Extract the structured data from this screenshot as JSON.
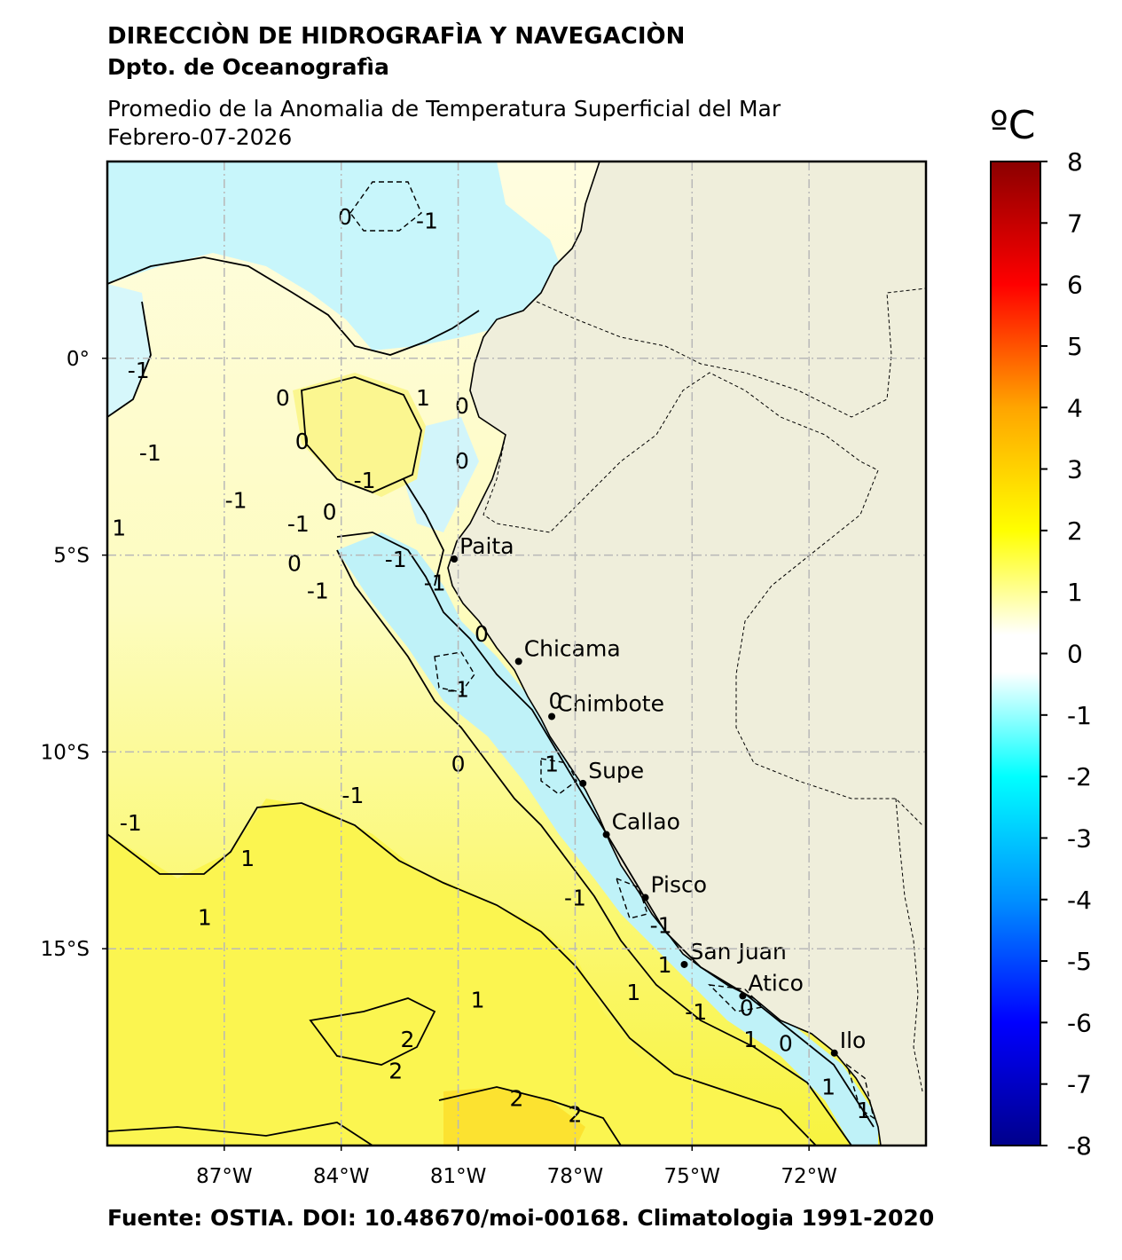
{
  "header": {
    "agency": "DIRECCIÒN DE HIDROGRAFÌA Y NAVEGACIÒN",
    "department": "Dpto. de Oceanografìa",
    "title": "Promedio de la Anomalia de Temperatura Superficial del Mar",
    "date": "Febrero-07-2026"
  },
  "footer": "Fuente: OSTIA. DOI: 10.48670/moi-00168. Climatologia 1991-2020",
  "map": {
    "extent": {
      "lon": [
        -90,
        -69
      ],
      "lat": [
        -20,
        5
      ]
    },
    "lat_ticks": [
      {
        "v": 0,
        "label": "0°"
      },
      {
        "v": -5,
        "label": "5°S"
      },
      {
        "v": -10,
        "label": "10°S"
      },
      {
        "v": -15,
        "label": "15°S"
      }
    ],
    "lon_ticks": [
      {
        "v": -87,
        "label": "87°W"
      },
      {
        "v": -84,
        "label": "84°W"
      },
      {
        "v": -81,
        "label": "81°W"
      },
      {
        "v": -78,
        "label": "78°W"
      },
      {
        "v": -75,
        "label": "75°W"
      },
      {
        "v": -72,
        "label": "72°W"
      }
    ],
    "land_color": "#efeedb",
    "cities": [
      {
        "name": "Paita",
        "lon": -81.1,
        "lat": -5.1
      },
      {
        "name": "Chicama",
        "lon": -79.45,
        "lat": -7.7
      },
      {
        "name": "Chimbote",
        "lon": -78.6,
        "lat": -9.1
      },
      {
        "name": "Supe",
        "lon": -77.8,
        "lat": -10.8
      },
      {
        "name": "Callao",
        "lon": -77.2,
        "lat": -12.1
      },
      {
        "name": "Pisco",
        "lon": -76.2,
        "lat": -13.7
      },
      {
        "name": "San Juan",
        "lon": -75.2,
        "lat": -15.4
      },
      {
        "name": "Atico",
        "lon": -73.7,
        "lat": -16.2
      },
      {
        "name": "Ilo",
        "lon": -71.35,
        "lat": -17.65
      }
    ],
    "contour_labels": [
      {
        "t": "-1",
        "lon": -81.8,
        "lat": 3.3
      },
      {
        "t": "0",
        "lon": -83.9,
        "lat": 3.4
      },
      {
        "t": "-1",
        "lon": -89.2,
        "lat": -0.5
      },
      {
        "t": "0",
        "lon": -85.5,
        "lat": -1.2
      },
      {
        "t": "1",
        "lon": -81.9,
        "lat": -1.2
      },
      {
        "t": "0",
        "lon": -80.9,
        "lat": -1.4
      },
      {
        "t": "0",
        "lon": -80.9,
        "lat": -2.8
      },
      {
        "t": "0",
        "lon": -85.0,
        "lat": -2.3
      },
      {
        "t": "-1",
        "lon": -88.9,
        "lat": -2.6
      },
      {
        "t": "-1",
        "lon": -86.7,
        "lat": -3.8
      },
      {
        "t": "-1",
        "lon": -83.4,
        "lat": -3.3
      },
      {
        "t": "-1",
        "lon": -85.1,
        "lat": -4.4
      },
      {
        "t": "1",
        "lon": -89.7,
        "lat": -4.5
      },
      {
        "t": "0",
        "lon": -84.3,
        "lat": -4.1
      },
      {
        "t": "0",
        "lon": -85.2,
        "lat": -5.4
      },
      {
        "t": "-1",
        "lon": -84.6,
        "lat": -6.1
      },
      {
        "t": "-1",
        "lon": -81.6,
        "lat": -5.9
      },
      {
        "t": "-1",
        "lon": -82.6,
        "lat": -5.3
      },
      {
        "t": "0",
        "lon": -80.4,
        "lat": -7.2
      },
      {
        "t": "-1",
        "lon": -81.0,
        "lat": -8.6
      },
      {
        "t": "0",
        "lon": -78.5,
        "lat": -8.9
      },
      {
        "t": "0",
        "lon": -81.0,
        "lat": -10.5
      },
      {
        "t": "1",
        "lon": -78.6,
        "lat": -10.5
      },
      {
        "t": "-1",
        "lon": -83.7,
        "lat": -11.3
      },
      {
        "t": "-1",
        "lon": -89.4,
        "lat": -12.0
      },
      {
        "t": "1",
        "lon": -86.4,
        "lat": -12.9
      },
      {
        "t": "1",
        "lon": -87.5,
        "lat": -14.4
      },
      {
        "t": "-1",
        "lon": -78.0,
        "lat": -13.9
      },
      {
        "t": "-1",
        "lon": -75.8,
        "lat": -14.6
      },
      {
        "t": "1",
        "lon": -75.7,
        "lat": -15.6
      },
      {
        "t": "1",
        "lon": -76.5,
        "lat": -16.3
      },
      {
        "t": "1",
        "lon": -80.5,
        "lat": -16.5
      },
      {
        "t": "1",
        "lon": -73.5,
        "lat": -17.5
      },
      {
        "t": "-1",
        "lon": -74.9,
        "lat": -16.8
      },
      {
        "t": "0",
        "lon": -73.6,
        "lat": -16.7
      },
      {
        "t": "0",
        "lon": -72.6,
        "lat": -17.6
      },
      {
        "t": "2",
        "lon": -82.3,
        "lat": -17.5
      },
      {
        "t": "2",
        "lon": -82.6,
        "lat": -18.3
      },
      {
        "t": "2",
        "lon": -79.5,
        "lat": -19.0
      },
      {
        "t": "2",
        "lon": -78.0,
        "lat": -19.4
      },
      {
        "t": "1",
        "lon": -71.5,
        "lat": -18.7
      },
      {
        "t": "1",
        "lon": -70.6,
        "lat": -19.3
      }
    ]
  },
  "colorbar": {
    "unit": "ºC",
    "min": -8,
    "max": 8,
    "ticks": [
      8,
      7,
      6,
      5,
      4,
      3,
      2,
      1,
      0,
      -1,
      -2,
      -3,
      -4,
      -5,
      -6,
      -7,
      -8
    ],
    "stops": [
      {
        "v": -8,
        "c": "#00008b"
      },
      {
        "v": -6,
        "c": "#0000ff"
      },
      {
        "v": -4,
        "c": "#0090ff"
      },
      {
        "v": -2,
        "c": "#00ffff"
      },
      {
        "v": -0.3,
        "c": "#ffffff"
      },
      {
        "v": 0.3,
        "c": "#ffffff"
      },
      {
        "v": 2,
        "c": "#ffff00"
      },
      {
        "v": 4,
        "c": "#ffa500"
      },
      {
        "v": 6,
        "c": "#ff0000"
      },
      {
        "v": 8,
        "c": "#8b0000"
      }
    ]
  }
}
